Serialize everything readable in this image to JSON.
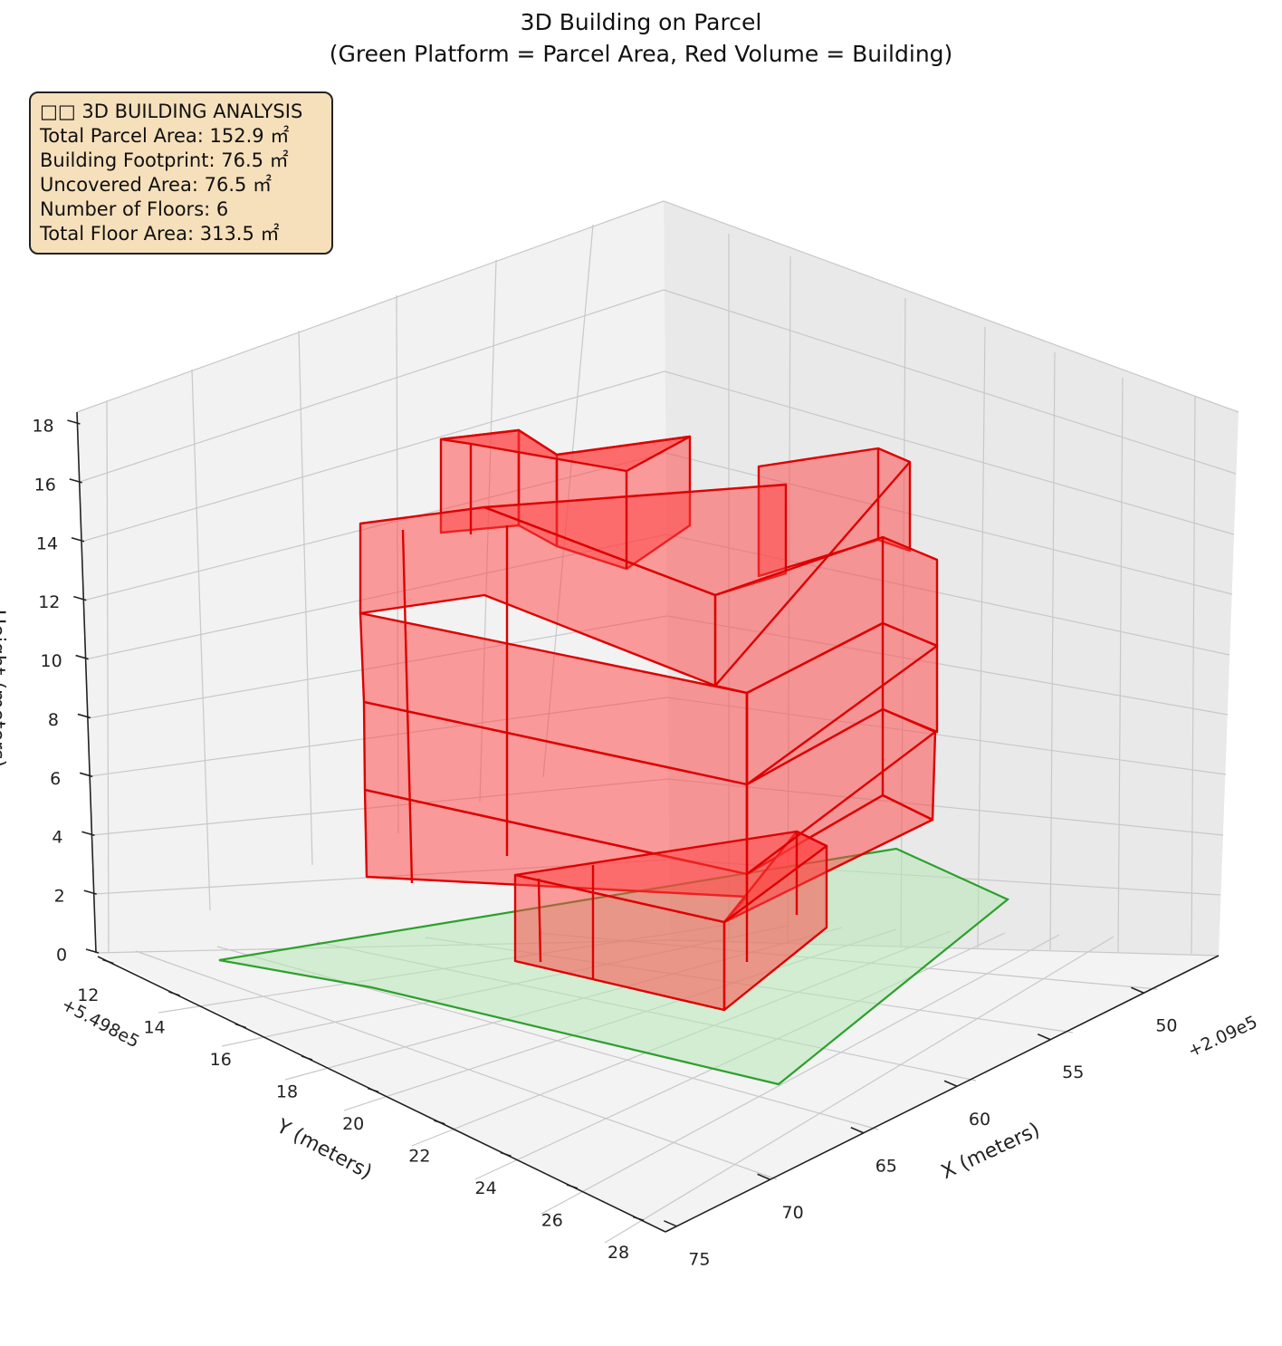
{
  "title_line1": "3D Building on Parcel",
  "title_line2": "(Green Platform = Parcel Area, Red Volume = Building)",
  "info_box": {
    "heading": "□□ 3D BUILDING ANALYSIS",
    "lines": [
      "Total Parcel Area: 152.9 ㎡",
      "Building Footprint: 76.5 ㎡",
      "Uncovered Area: 76.5 ㎡",
      "Number of Floors: 6",
      "Total Floor Area: 313.5 ㎡"
    ]
  },
  "colors": {
    "building_fill": "#ff4040",
    "building_edge": "#dd0000",
    "parcel_fill": "#b6e7b6",
    "parcel_edge": "#2ca02c",
    "pane": "#f2f2f2",
    "grid": "#c8c8c8",
    "info_bg": "#f6e0bb"
  },
  "chart_data": {
    "type": "3d-polygon",
    "title": "3D Building on Parcel\n(Green Platform = Parcel Area, Red Volume = Building)",
    "xlabel": "X (meters)",
    "ylabel": "Y (meters)",
    "zlabel": "Height (meters)",
    "x_offset_label": "+2.09e5",
    "y_offset_label": "+5.498e5",
    "x_ticks": [
      50,
      55,
      60,
      65,
      70,
      75
    ],
    "y_ticks": [
      12,
      14,
      16,
      18,
      20,
      22,
      24,
      26,
      28
    ],
    "z_ticks": [
      0,
      2,
      4,
      6,
      8,
      10,
      12,
      14,
      16,
      18
    ],
    "xlim": [
      46,
      76
    ],
    "ylim": [
      11.5,
      28.5
    ],
    "zlim": [
      0,
      18
    ],
    "grid": true,
    "parcel_area_m2": 152.9,
    "building_footprint_m2": 76.5,
    "uncovered_area_m2": 76.5,
    "num_floors": 6,
    "total_floor_area_m2": 313.5
  }
}
